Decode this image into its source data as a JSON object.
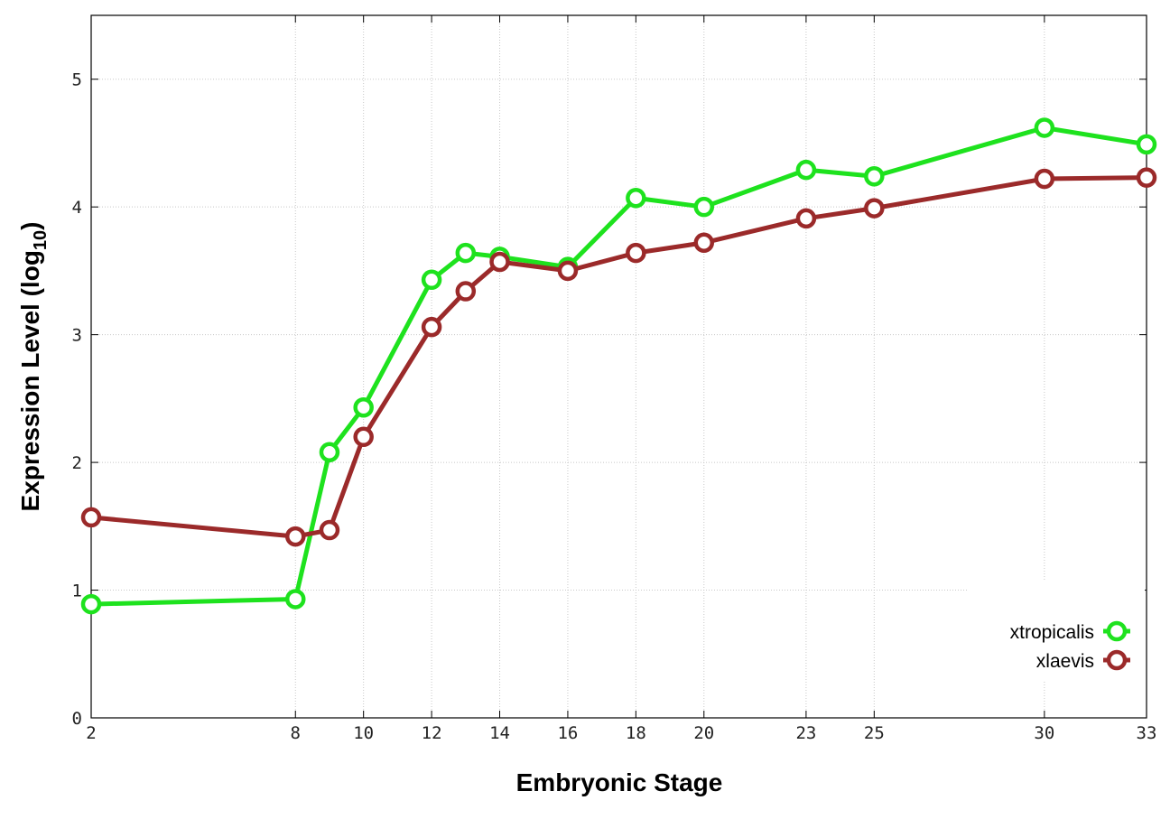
{
  "chart_data": {
    "type": "line",
    "xlabel": "Embryonic Stage",
    "ylabel_main": "Expression Level (log",
    "ylabel_sub": "10",
    "ylabel_close": ")",
    "xlim": [
      2,
      33
    ],
    "ylim": [
      0,
      5.5
    ],
    "x_ticks": [
      2,
      8,
      10,
      12,
      14,
      16,
      18,
      20,
      23,
      25,
      30,
      33
    ],
    "y_ticks": [
      0,
      1,
      2,
      3,
      4,
      5
    ],
    "x": [
      2,
      8,
      9,
      10,
      12,
      13,
      14,
      16,
      18,
      20,
      23,
      25,
      30,
      33
    ],
    "grid": true,
    "legend_position": "bottom-right",
    "series": [
      {
        "name": "xtropicalis",
        "color": "#1ee21e",
        "values": [
          0.89,
          0.93,
          2.08,
          2.43,
          3.43,
          3.64,
          3.61,
          3.53,
          4.07,
          4.0,
          4.29,
          4.24,
          4.62,
          4.49
        ]
      },
      {
        "name": "xlaevis",
        "color": "#9b2a2a",
        "values": [
          1.57,
          1.42,
          1.47,
          2.2,
          3.06,
          3.34,
          3.57,
          3.5,
          3.64,
          3.72,
          3.91,
          3.99,
          4.22,
          4.23
        ]
      }
    ]
  }
}
